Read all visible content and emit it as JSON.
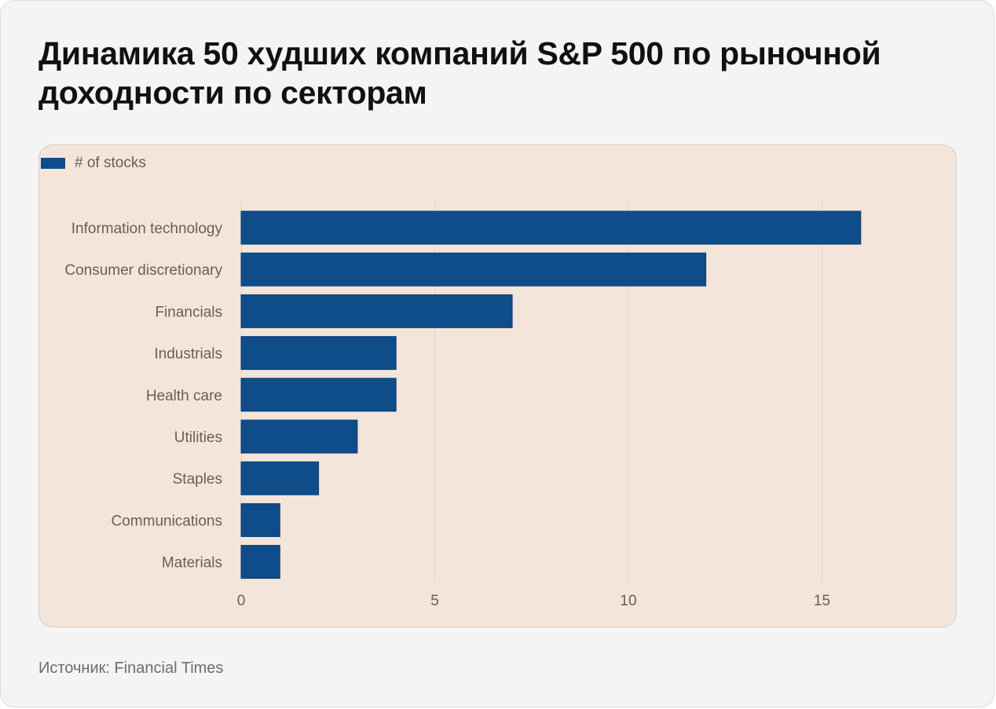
{
  "title": "Динамика 50 худших компаний S&P 500 по рыночной доходности по секторам",
  "source": "Источник: Financial Times",
  "colors": {
    "bar": "#0f4c8a",
    "background": "#f3e5da",
    "grid": "#e3d6cc"
  },
  "chart_data": {
    "type": "bar",
    "orientation": "horizontal",
    "legend": [
      "# of stocks"
    ],
    "legend_position": "top-left",
    "categories": [
      "Information technology",
      "Consumer discretionary",
      "Financials",
      "Industrials",
      "Health care",
      "Utilities",
      "Staples",
      "Communications",
      "Materials"
    ],
    "series": [
      {
        "name": "# of stocks",
        "values": [
          16,
          12,
          7,
          4,
          4,
          3,
          2,
          1,
          1
        ]
      }
    ],
    "xlim": [
      0,
      18
    ],
    "xticks": [
      0,
      5,
      10,
      15
    ],
    "grid": true
  }
}
